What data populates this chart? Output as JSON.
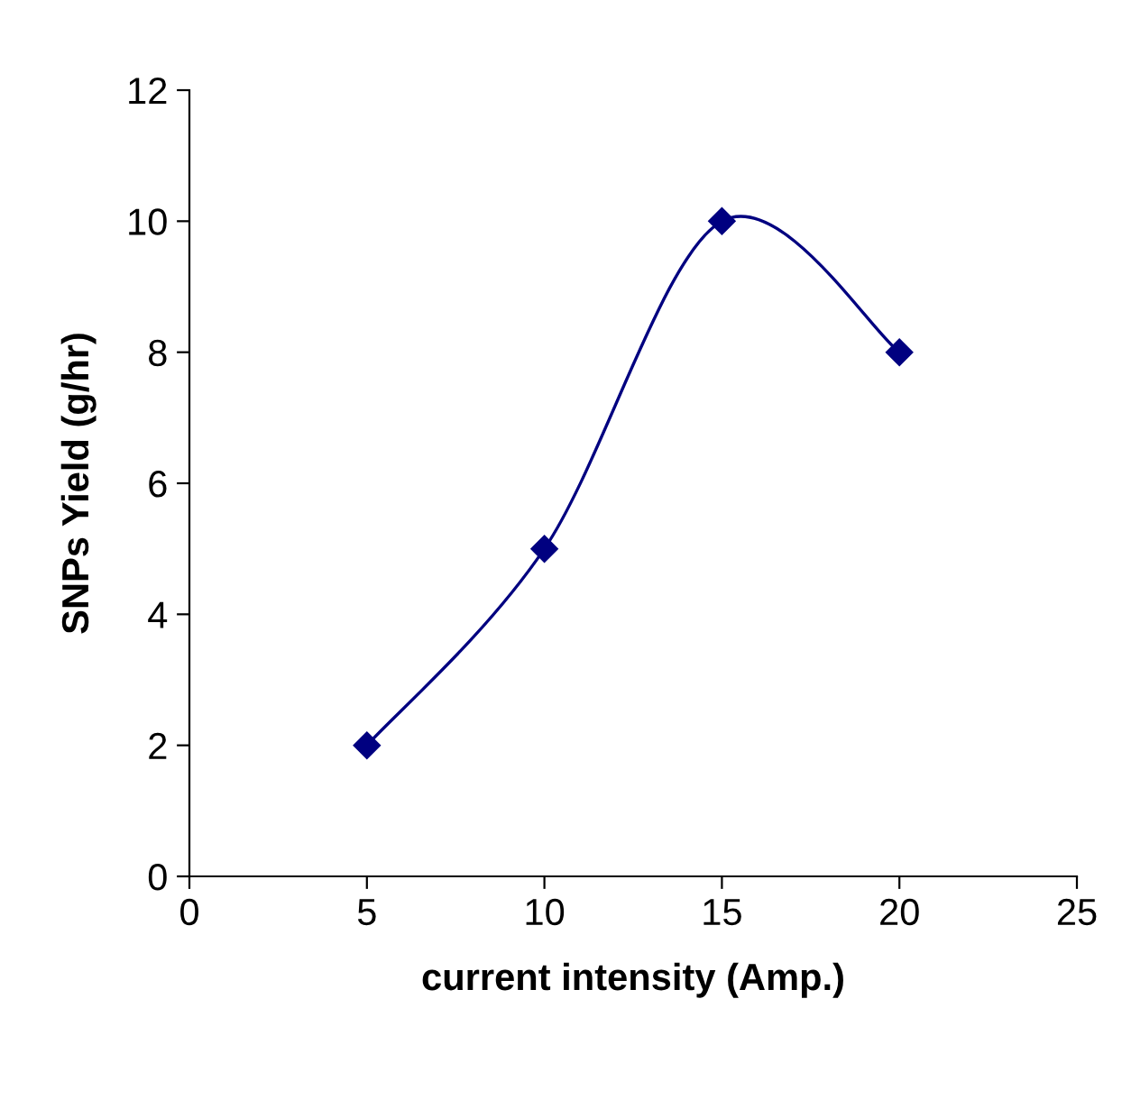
{
  "chart_data": {
    "type": "line",
    "xlabel": "current intensity (Amp.)",
    "ylabel": "SNPs Yield (g/hr)",
    "x": [
      5,
      10,
      15,
      20
    ],
    "series": [
      {
        "color": "#000080",
        "values": [
          2,
          5,
          10,
          8
        ]
      }
    ],
    "xlim": [
      0,
      25
    ],
    "xticks": [
      0,
      5,
      10,
      15,
      20,
      25
    ],
    "ylim": [
      0,
      12
    ],
    "yticks": [
      0,
      2,
      4,
      6,
      8,
      10,
      12
    ],
    "grid": false,
    "legend": false,
    "marker": "diamond",
    "line_style": "solid"
  }
}
